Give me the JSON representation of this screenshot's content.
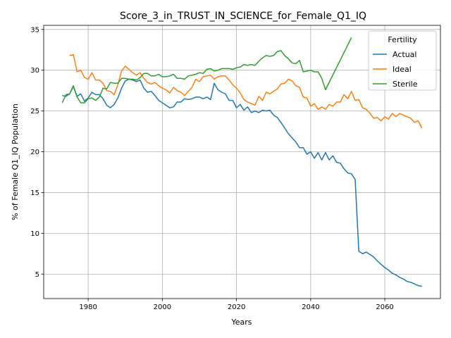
{
  "chart_data": {
    "type": "line",
    "title": "Score_3_in_TRUST_IN_SCIENCE_for_Female_Q1_IQ",
    "xlabel": "Years",
    "ylabel": "% of Female Q1_IQ Population",
    "xlim": [
      1968,
      2075
    ],
    "ylim": [
      2,
      35.5
    ],
    "xticks": [
      1980,
      2000,
      2020,
      2040,
      2060
    ],
    "yticks": [
      5,
      10,
      15,
      20,
      25,
      30,
      35
    ],
    "grid": true,
    "legend": {
      "title": "Fertility",
      "position": "top-right"
    },
    "series": [
      {
        "name": "Actual",
        "color": "#1f77b4",
        "points": [
          [
            1973,
            26.9
          ],
          [
            1974,
            26.8
          ],
          [
            1975,
            27.1
          ],
          [
            1976,
            28.0
          ],
          [
            1977,
            26.8
          ],
          [
            1978,
            27.1
          ],
          [
            1979,
            26.2
          ],
          [
            1980,
            26.6
          ],
          [
            1981,
            27.3
          ],
          [
            1982,
            27.0
          ],
          [
            1983,
            27.0
          ],
          [
            1984,
            26.5
          ],
          [
            1985,
            25.7
          ],
          [
            1986,
            25.4
          ],
          [
            1987,
            25.8
          ],
          [
            1988,
            26.6
          ],
          [
            1989,
            27.8
          ],
          [
            1990,
            28.7
          ],
          [
            1991,
            28.9
          ],
          [
            1992,
            28.8
          ],
          [
            1993,
            28.6
          ],
          [
            1994,
            28.8
          ],
          [
            1995,
            27.8
          ],
          [
            1996,
            27.3
          ],
          [
            1997,
            27.4
          ],
          [
            1998,
            26.9
          ],
          [
            1999,
            26.3
          ],
          [
            2000,
            26.0
          ],
          [
            2001,
            25.7
          ],
          [
            2002,
            25.4
          ],
          [
            2003,
            25.5
          ],
          [
            2004,
            26.1
          ],
          [
            2005,
            26.1
          ],
          [
            2006,
            26.5
          ],
          [
            2007,
            26.4
          ],
          [
            2008,
            26.5
          ],
          [
            2009,
            26.7
          ],
          [
            2010,
            26.7
          ],
          [
            2011,
            26.5
          ],
          [
            2012,
            26.7
          ],
          [
            2013,
            26.4
          ],
          [
            2014,
            28.4
          ],
          [
            2015,
            27.6
          ],
          [
            2016,
            27.3
          ],
          [
            2017,
            27.1
          ],
          [
            2018,
            26.3
          ],
          [
            2019,
            26.3
          ],
          [
            2020,
            25.4
          ],
          [
            2021,
            25.8
          ],
          [
            2022,
            25.1
          ],
          [
            2023,
            25.5
          ],
          [
            2024,
            24.8
          ],
          [
            2025,
            25.0
          ],
          [
            2026,
            24.8
          ],
          [
            2027,
            25.1
          ],
          [
            2028,
            25.0
          ],
          [
            2029,
            25.1
          ],
          [
            2030,
            24.5
          ],
          [
            2031,
            24.2
          ],
          [
            2032,
            23.6
          ],
          [
            2033,
            22.9
          ],
          [
            2034,
            22.2
          ],
          [
            2035,
            21.7
          ],
          [
            2036,
            21.2
          ],
          [
            2037,
            20.5
          ],
          [
            2038,
            20.5
          ],
          [
            2039,
            19.7
          ],
          [
            2040,
            20.0
          ],
          [
            2041,
            19.2
          ],
          [
            2042,
            19.9
          ],
          [
            2043,
            19.0
          ],
          [
            2044,
            19.9
          ],
          [
            2045,
            19.0
          ],
          [
            2046,
            19.5
          ],
          [
            2047,
            18.7
          ],
          [
            2048,
            18.6
          ],
          [
            2049,
            17.9
          ],
          [
            2050,
            17.4
          ],
          [
            2051,
            17.3
          ],
          [
            2052,
            16.6
          ],
          [
            2053,
            7.8
          ],
          [
            2054,
            7.5
          ],
          [
            2055,
            7.7
          ],
          [
            2056,
            7.4
          ],
          [
            2057,
            7.1
          ],
          [
            2058,
            6.6
          ],
          [
            2059,
            6.2
          ],
          [
            2060,
            5.8
          ],
          [
            2061,
            5.5
          ],
          [
            2062,
            5.1
          ],
          [
            2063,
            4.9
          ],
          [
            2064,
            4.6
          ],
          [
            2065,
            4.4
          ],
          [
            2066,
            4.1
          ],
          [
            2067,
            4.0
          ],
          [
            2068,
            3.8
          ],
          [
            2069,
            3.6
          ],
          [
            2070,
            3.5
          ]
        ]
      },
      {
        "name": "Ideal",
        "color": "#ff7f0e",
        "points": [
          [
            1975,
            31.8
          ],
          [
            1976,
            31.9
          ],
          [
            1977,
            29.8
          ],
          [
            1978,
            30.0
          ],
          [
            1979,
            29.1
          ],
          [
            1980,
            28.9
          ],
          [
            1981,
            29.7
          ],
          [
            1982,
            28.8
          ],
          [
            1983,
            28.8
          ],
          [
            1984,
            28.4
          ],
          [
            1985,
            27.5
          ],
          [
            1986,
            27.4
          ],
          [
            1987,
            27.0
          ],
          [
            1988,
            28.2
          ],
          [
            1989,
            29.9
          ],
          [
            1990,
            30.5
          ],
          [
            1991,
            30.1
          ],
          [
            1992,
            29.7
          ],
          [
            1993,
            29.4
          ],
          [
            1994,
            29.7
          ],
          [
            1995,
            29.0
          ],
          [
            1996,
            28.5
          ],
          [
            1997,
            28.3
          ],
          [
            1998,
            28.5
          ],
          [
            1999,
            28.1
          ],
          [
            2000,
            27.8
          ],
          [
            2001,
            27.6
          ],
          [
            2002,
            27.2
          ],
          [
            2003,
            27.9
          ],
          [
            2004,
            27.5
          ],
          [
            2005,
            27.3
          ],
          [
            2006,
            26.9
          ],
          [
            2007,
            27.4
          ],
          [
            2008,
            27.9
          ],
          [
            2009,
            28.9
          ],
          [
            2010,
            28.6
          ],
          [
            2011,
            29.2
          ],
          [
            2012,
            29.3
          ],
          [
            2013,
            29.4
          ],
          [
            2014,
            28.9
          ],
          [
            2015,
            29.2
          ],
          [
            2016,
            29.3
          ],
          [
            2017,
            29.3
          ],
          [
            2018,
            28.8
          ],
          [
            2019,
            28.2
          ],
          [
            2020,
            27.8
          ],
          [
            2021,
            27.2
          ],
          [
            2022,
            26.4
          ],
          [
            2023,
            26.1
          ],
          [
            2024,
            25.9
          ],
          [
            2025,
            25.7
          ],
          [
            2026,
            26.8
          ],
          [
            2027,
            26.3
          ],
          [
            2028,
            27.3
          ],
          [
            2029,
            27.1
          ],
          [
            2030,
            27.4
          ],
          [
            2031,
            27.7
          ],
          [
            2032,
            28.3
          ],
          [
            2033,
            28.4
          ],
          [
            2034,
            28.9
          ],
          [
            2035,
            28.7
          ],
          [
            2036,
            28.1
          ],
          [
            2037,
            27.9
          ],
          [
            2038,
            26.7
          ],
          [
            2039,
            26.6
          ],
          [
            2040,
            25.6
          ],
          [
            2041,
            25.9
          ],
          [
            2042,
            25.2
          ],
          [
            2043,
            25.5
          ],
          [
            2044,
            25.2
          ],
          [
            2045,
            25.8
          ],
          [
            2046,
            25.6
          ],
          [
            2047,
            26.1
          ],
          [
            2048,
            26.1
          ],
          [
            2049,
            27.0
          ],
          [
            2050,
            26.5
          ],
          [
            2051,
            27.4
          ],
          [
            2052,
            26.3
          ],
          [
            2053,
            26.4
          ],
          [
            2054,
            25.4
          ],
          [
            2055,
            25.2
          ],
          [
            2056,
            24.7
          ],
          [
            2057,
            24.1
          ],
          [
            2058,
            24.2
          ],
          [
            2059,
            23.8
          ],
          [
            2060,
            24.3
          ],
          [
            2061,
            24.0
          ],
          [
            2062,
            24.7
          ],
          [
            2063,
            24.3
          ],
          [
            2064,
            24.7
          ],
          [
            2065,
            24.5
          ],
          [
            2066,
            24.3
          ],
          [
            2067,
            24.1
          ],
          [
            2068,
            23.6
          ],
          [
            2069,
            23.8
          ],
          [
            2070,
            22.9
          ]
        ]
      },
      {
        "name": "Sterile",
        "color": "#2ca02c",
        "points": [
          [
            1973,
            26.0
          ],
          [
            1974,
            27.0
          ],
          [
            1975,
            27.1
          ],
          [
            1976,
            28.1
          ],
          [
            1977,
            26.7
          ],
          [
            1978,
            26.0
          ],
          [
            1979,
            26.0
          ],
          [
            1980,
            26.5
          ],
          [
            1981,
            26.6
          ],
          [
            1982,
            26.3
          ],
          [
            1983,
            26.7
          ],
          [
            1984,
            27.8
          ],
          [
            1985,
            27.7
          ],
          [
            1986,
            28.5
          ],
          [
            1987,
            28.4
          ],
          [
            1988,
            28.4
          ],
          [
            1989,
            29.0
          ],
          [
            1990,
            29.0
          ],
          [
            1991,
            28.9
          ],
          [
            1992,
            28.9
          ],
          [
            1993,
            28.8
          ],
          [
            1994,
            29.1
          ],
          [
            1995,
            29.6
          ],
          [
            1996,
            29.6
          ],
          [
            1997,
            29.3
          ],
          [
            1998,
            29.3
          ],
          [
            1999,
            29.5
          ],
          [
            2000,
            29.2
          ],
          [
            2001,
            29.2
          ],
          [
            2002,
            29.3
          ],
          [
            2003,
            29.5
          ],
          [
            2004,
            29.0
          ],
          [
            2005,
            29.0
          ],
          [
            2006,
            28.9
          ],
          [
            2007,
            29.3
          ],
          [
            2008,
            29.4
          ],
          [
            2009,
            29.5
          ],
          [
            2010,
            29.7
          ],
          [
            2011,
            29.6
          ],
          [
            2012,
            30.1
          ],
          [
            2013,
            30.2
          ],
          [
            2014,
            29.9
          ],
          [
            2015,
            30.0
          ],
          [
            2016,
            30.2
          ],
          [
            2017,
            30.2
          ],
          [
            2018,
            30.2
          ],
          [
            2019,
            30.1
          ],
          [
            2020,
            30.3
          ],
          [
            2021,
            30.4
          ],
          [
            2022,
            30.7
          ],
          [
            2023,
            30.6
          ],
          [
            2024,
            30.7
          ],
          [
            2025,
            30.6
          ],
          [
            2026,
            31.1
          ],
          [
            2027,
            31.5
          ],
          [
            2028,
            31.8
          ],
          [
            2029,
            31.7
          ],
          [
            2030,
            31.8
          ],
          [
            2031,
            32.3
          ],
          [
            2032,
            32.4
          ],
          [
            2033,
            31.8
          ],
          [
            2034,
            31.4
          ],
          [
            2035,
            30.9
          ],
          [
            2036,
            30.8
          ],
          [
            2037,
            31.2
          ],
          [
            2038,
            29.8
          ],
          [
            2039,
            29.9
          ],
          [
            2040,
            30.0
          ],
          [
            2041,
            29.8
          ],
          [
            2042,
            29.8
          ],
          [
            2043,
            29.0
          ],
          [
            2044,
            27.6
          ],
          [
            2051,
            34.0
          ]
        ]
      }
    ]
  }
}
